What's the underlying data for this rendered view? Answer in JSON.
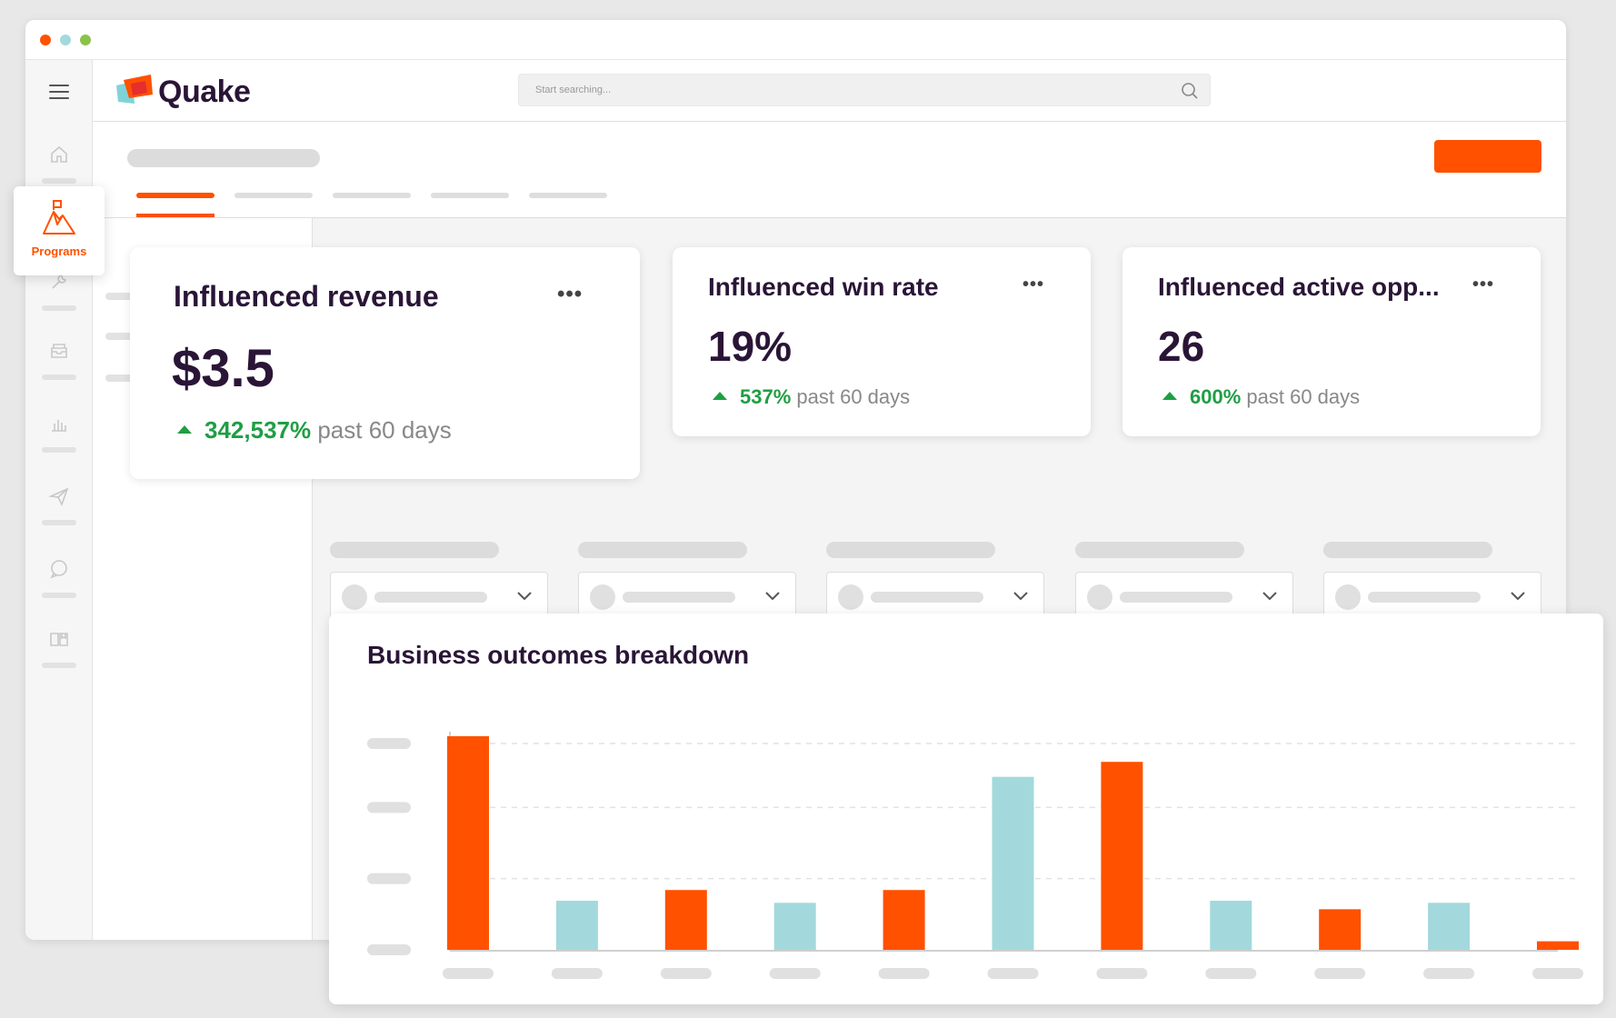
{
  "brand": {
    "name": "Quake"
  },
  "search": {
    "placeholder": "Start searching..."
  },
  "sidebar": {
    "active_item": {
      "label": "Programs",
      "icon": "programs-icon"
    },
    "icons": [
      "home-icon",
      "programs-icon",
      "wrench-icon",
      "inbox-icon",
      "bar-chart-icon",
      "send-icon",
      "chat-icon",
      "library-icon"
    ]
  },
  "kpis": [
    {
      "title": "Influenced revenue",
      "value": "$3.5",
      "delta_pct": "342,537%",
      "delta_text": " past 60 days",
      "more": "•••"
    },
    {
      "title": "Influenced win rate",
      "value": "19%",
      "delta_pct": "537%",
      "delta_text": " past 60 days",
      "more": "•••"
    },
    {
      "title": "Influenced active opp...",
      "value": "26",
      "delta_pct": "600%",
      "delta_text": " past 60 days",
      "more": "•••"
    }
  ],
  "colors": {
    "accent": "#ff5100",
    "teal": "#a3d9dc",
    "positive": "#1f9e43",
    "text": "#2a1537"
  },
  "chart": {
    "title": "Business outcomes breakdown"
  },
  "chart_data": {
    "type": "bar",
    "title": "Business outcomes breakdown",
    "series": [
      {
        "values": [
          100,
          0,
          28,
          0,
          28,
          0,
          88,
          0,
          19,
          0,
          4
        ],
        "color": "#ff5100"
      },
      {
        "values": [
          0,
          23,
          0,
          22,
          0,
          81,
          0,
          23,
          0,
          22,
          0
        ],
        "color": "#a3d9dc"
      }
    ],
    "ylim": [
      0,
      100
    ],
    "grid": true
  }
}
